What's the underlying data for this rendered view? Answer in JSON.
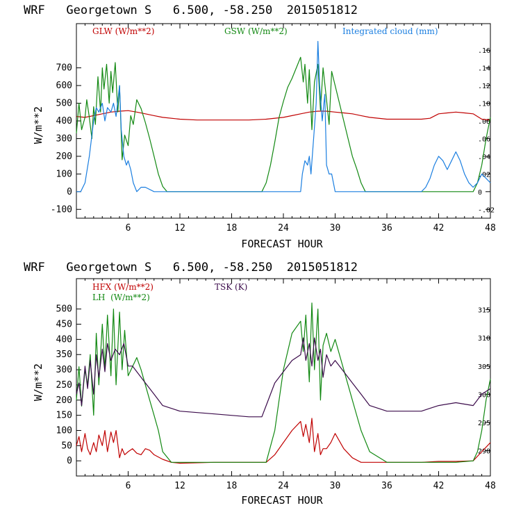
{
  "colors": {
    "red": "#c00000",
    "green": "#118811",
    "blue": "#1a7ee0",
    "purple": "#3a0a4a",
    "axis": "#000000"
  },
  "chart_data": [
    {
      "type": "line",
      "title": "WRF   Georgetown S   6.500, -58.250  2015051812",
      "xlabel": "FORECAST HOUR",
      "ylabel": "W/m**2",
      "xlim": [
        0,
        48
      ],
      "ylim": [
        -150,
        950
      ],
      "x_ticks": [
        6,
        12,
        18,
        24,
        30,
        36,
        42,
        48
      ],
      "y_ticks": [
        -100,
        0,
        100,
        200,
        300,
        400,
        500,
        600,
        700
      ],
      "y2_ticks": [
        -0.02,
        0,
        0.02,
        0.04,
        0.06,
        0.08,
        0.1,
        0.12,
        0.14,
        0.16
      ],
      "y2_tick_labels": [
        "-.02",
        "0",
        ".02",
        ".04",
        ".06",
        ".08",
        ".10",
        ".12",
        ".14",
        ".16"
      ],
      "y2lim": [
        -0.03,
        0.19
      ],
      "series": [
        {
          "name": "GLW (W/m**2)",
          "color": "red",
          "axis": "left",
          "x": [
            0,
            1,
            2,
            3,
            4,
            5,
            6,
            7,
            8,
            9,
            10,
            12,
            14,
            16,
            18,
            20,
            22,
            24,
            25,
            26,
            27,
            28,
            29,
            30,
            31,
            32,
            33,
            34,
            36,
            38,
            40,
            41,
            42,
            43,
            44,
            45,
            46,
            47,
            48
          ],
          "y": [
            425,
            420,
            430,
            440,
            450,
            455,
            458,
            450,
            440,
            430,
            420,
            410,
            405,
            405,
            405,
            405,
            410,
            420,
            430,
            440,
            450,
            455,
            455,
            450,
            445,
            440,
            430,
            420,
            410,
            410,
            410,
            415,
            440,
            445,
            450,
            445,
            440,
            410,
            405
          ]
        },
        {
          "name": "GSW (W/m**2)",
          "color": "green",
          "axis": "left",
          "x": [
            0,
            0.3,
            0.6,
            1,
            1.2,
            1.5,
            1.8,
            2,
            2.2,
            2.5,
            2.8,
            3,
            3.2,
            3.5,
            3.8,
            4,
            4.2,
            4.5,
            4.8,
            5,
            5.3,
            5.6,
            6,
            6.3,
            6.6,
            7,
            7.5,
            8,
            8.5,
            9,
            9.5,
            10,
            10.5,
            12,
            14,
            16,
            18,
            20,
            21.5,
            22,
            22.5,
            23,
            23.5,
            24,
            24.5,
            25,
            25.5,
            26,
            26.3,
            26.5,
            26.8,
            27,
            27.3,
            27.6,
            28,
            28.3,
            28.6,
            29,
            29.3,
            29.6,
            30,
            30.5,
            31,
            31.5,
            32,
            32.5,
            33,
            33.5,
            34,
            36,
            38,
            40,
            42,
            44,
            45,
            46,
            46.5,
            47,
            47.5,
            48
          ],
          "y": [
            330,
            500,
            350,
            420,
            520,
            420,
            300,
            480,
            380,
            650,
            450,
            700,
            580,
            720,
            500,
            680,
            560,
            730,
            450,
            600,
            180,
            320,
            260,
            430,
            380,
            520,
            470,
            390,
            300,
            200,
            100,
            30,
            0,
            0,
            0,
            0,
            0,
            0,
            0,
            50,
            150,
            280,
            420,
            510,
            590,
            640,
            700,
            760,
            620,
            720,
            500,
            690,
            350,
            620,
            720,
            460,
            700,
            520,
            380,
            680,
            600,
            500,
            400,
            300,
            200,
            130,
            50,
            0,
            0,
            0,
            0,
            0,
            0,
            0,
            0,
            0,
            50,
            150,
            300,
            420
          ]
        },
        {
          "name": "Integrated cloud (mm)",
          "color": "blue",
          "axis": "right",
          "x": [
            0,
            0.5,
            1,
            1.5,
            2,
            2.3,
            2.6,
            3,
            3.3,
            3.6,
            4,
            4.3,
            4.6,
            5,
            5.2,
            5.5,
            5.8,
            6,
            6.3,
            6.6,
            7,
            7.5,
            8,
            9,
            10,
            12,
            14,
            20,
            26,
            26.2,
            26.5,
            26.8,
            27,
            27.2,
            27.5,
            27.8,
            28,
            28.2,
            28.5,
            28.8,
            29,
            29.3,
            29.6,
            30,
            31,
            36,
            40,
            40.5,
            41,
            41.5,
            42,
            42.5,
            43,
            43.5,
            44,
            44.5,
            45,
            45.5,
            46,
            46.5,
            47,
            47.5,
            48
          ],
          "y": [
            0,
            0,
            0.01,
            0.04,
            0.08,
            0.095,
            0.09,
            0.1,
            0.08,
            0.095,
            0.09,
            0.1,
            0.085,
            0.12,
            0.07,
            0.04,
            0.03,
            0.035,
            0.025,
            0.01,
            0.0,
            0.005,
            0.005,
            0,
            0,
            0,
            0,
            0,
            0,
            0.02,
            0.035,
            0.03,
            0.04,
            0.02,
            0.06,
            0.1,
            0.17,
            0.12,
            0.08,
            0.11,
            0.03,
            0.02,
            0.02,
            0.0,
            0,
            0,
            0,
            0.005,
            0.015,
            0.03,
            0.04,
            0.035,
            0.025,
            0.035,
            0.045,
            0.035,
            0.02,
            0.01,
            0.005,
            0.01,
            0.02,
            0.015,
            0.01
          ]
        }
      ]
    },
    {
      "type": "line",
      "title": "WRF   Georgetown S   6.500, -58.250  2015051812",
      "xlabel": "FORECAST HOUR",
      "ylabel": "W/m**2",
      "xlim": [
        0,
        48
      ],
      "ylim": [
        -50,
        600
      ],
      "x_ticks": [
        6,
        12,
        18,
        24,
        30,
        36,
        42,
        48
      ],
      "y_ticks": [
        0,
        50,
        100,
        150,
        200,
        250,
        300,
        350,
        400,
        450,
        500
      ],
      "y2_ticks": [
        290,
        295,
        300,
        305,
        310,
        315
      ],
      "y2_tick_labels": [
        "290",
        "295",
        "300",
        "305",
        "310",
        "315"
      ],
      "y2lim": [
        285.5,
        320.5
      ],
      "series": [
        {
          "name": "HFX (W/m**2)",
          "color": "red",
          "axis": "left",
          "x": [
            0,
            0.3,
            0.6,
            1,
            1.3,
            1.6,
            2,
            2.3,
            2.6,
            3,
            3.3,
            3.6,
            4,
            4.3,
            4.6,
            5,
            5.3,
            5.6,
            6,
            6.5,
            7,
            7.5,
            8,
            8.5,
            9,
            10,
            11,
            12,
            16,
            20,
            22,
            23,
            24,
            25,
            26,
            26.3,
            26.6,
            27,
            27.3,
            27.6,
            28,
            28.3,
            28.6,
            29,
            29.5,
            30,
            31,
            32,
            33,
            34,
            36,
            40,
            42,
            44,
            46,
            47,
            48
          ],
          "y": [
            50,
            80,
            30,
            90,
            40,
            20,
            60,
            30,
            85,
            50,
            100,
            30,
            95,
            60,
            100,
            10,
            40,
            20,
            30,
            40,
            25,
            20,
            40,
            35,
            20,
            5,
            -5,
            -8,
            -5,
            -5,
            -5,
            20,
            60,
            100,
            130,
            80,
            120,
            60,
            140,
            30,
            90,
            20,
            40,
            40,
            60,
            90,
            40,
            10,
            -5,
            -5,
            -5,
            -5,
            -2,
            -2,
            0,
            30,
            60
          ]
        },
        {
          "name": "LH  (W/m**2)",
          "color": "green",
          "axis": "left",
          "x": [
            0,
            0.3,
            0.6,
            1,
            1.3,
            1.6,
            2,
            2.3,
            2.6,
            3,
            3.3,
            3.6,
            4,
            4.3,
            4.6,
            5,
            5.3,
            5.6,
            6,
            6.5,
            7,
            7.5,
            8,
            8.5,
            9,
            9.5,
            10,
            11,
            12,
            16,
            20,
            22,
            23,
            24,
            25,
            26,
            26.3,
            26.6,
            27,
            27.3,
            27.6,
            28,
            28.3,
            28.6,
            29,
            29.5,
            30,
            31,
            32,
            33,
            34,
            36,
            40,
            44,
            46,
            46.5,
            47,
            47.5,
            48
          ],
          "y": [
            200,
            310,
            180,
            300,
            250,
            350,
            150,
            420,
            250,
            450,
            300,
            480,
            280,
            500,
            250,
            490,
            300,
            430,
            280,
            310,
            340,
            300,
            250,
            200,
            150,
            100,
            30,
            -5,
            -5,
            -5,
            -5,
            -5,
            100,
            300,
            420,
            460,
            360,
            480,
            260,
            520,
            300,
            500,
            200,
            380,
            420,
            360,
            400,
            300,
            200,
            100,
            30,
            -5,
            -5,
            -5,
            0,
            30,
            100,
            200,
            270
          ]
        },
        {
          "name": "TSK (K)",
          "color": "purple",
          "axis": "right",
          "x": [
            0,
            0.3,
            0.6,
            1,
            1.3,
            1.6,
            2,
            2.3,
            2.6,
            3,
            3.3,
            3.6,
            4,
            4.5,
            5,
            5.5,
            6,
            6.5,
            7,
            8,
            9,
            10,
            12,
            16,
            20,
            21.5,
            22,
            23,
            24,
            25,
            26,
            26.3,
            26.6,
            27,
            27.3,
            27.6,
            28,
            28.3,
            28.6,
            29,
            29.5,
            30,
            31,
            32,
            33,
            34,
            36,
            40,
            41,
            42,
            44,
            46,
            47,
            48
          ],
          "y": [
            300,
            302,
            298,
            305,
            301,
            306,
            300,
            307,
            303,
            308,
            304,
            309,
            306,
            308,
            307,
            309,
            305,
            305,
            304,
            302,
            300,
            298,
            297,
            296.5,
            296,
            296,
            298,
            302,
            304,
            306,
            307,
            310,
            306,
            309,
            305,
            310,
            306,
            308,
            303,
            307,
            305,
            306,
            304,
            302,
            300,
            298,
            297,
            297,
            297.5,
            298,
            298.5,
            298,
            300,
            301
          ]
        }
      ]
    }
  ],
  "legends": {
    "top": {
      "glw": "GLW (W/m**2)",
      "gsw": "GSW (W/m**2)",
      "cloud": "Integrated cloud (mm)"
    },
    "bottom": {
      "hfx": "HFX (W/m**2)",
      "lh": "LH  (W/m**2)",
      "tsk": "TSK (K)"
    }
  }
}
